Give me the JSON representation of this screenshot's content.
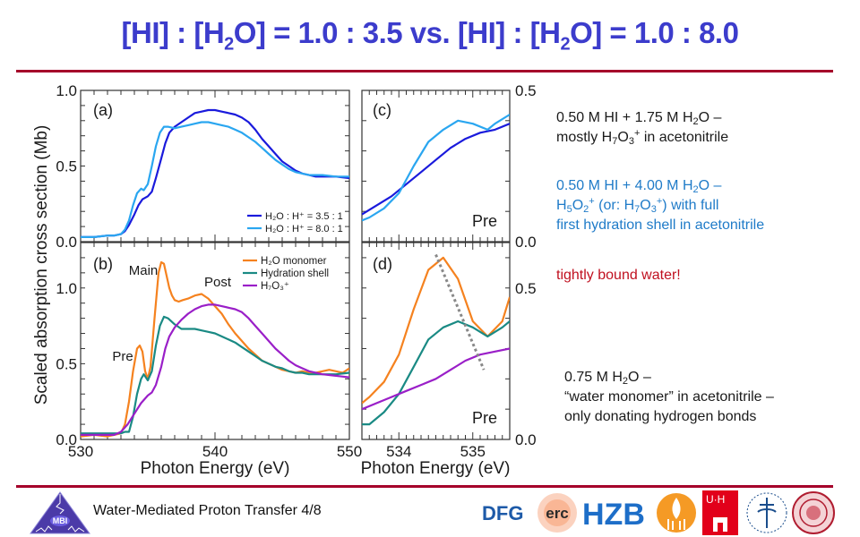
{
  "slide": {
    "title_parts": [
      "[HI] : [H",
      "2",
      "O] = 1.0 : 3.5  vs. [HI] : [H",
      "2",
      "O] = 1.0 : 8.0"
    ],
    "footer": "Water-Mediated  Proton Transfer  4/8",
    "logos": [
      "MBI",
      "DFG",
      "erc",
      "HZB",
      "Ben-Gurion",
      "UHH",
      "Stockholm University",
      "Uppsala University"
    ],
    "colors": {
      "title": "#3c3ccc",
      "rule": "#a5002a",
      "note_black": "#1a1a1a",
      "note_blue": "#1f7bc8",
      "note_red": "#c0101f"
    }
  },
  "notes": {
    "n1_line1": [
      "0.50 M HI + 1.75 M H",
      "2",
      "O –"
    ],
    "n1_line2": [
      "mostly H",
      "7",
      "O",
      "3",
      "+",
      " in acetonitrile"
    ],
    "n2_line1": [
      "0.50 M HI + 4.00 M H",
      "2",
      "O –"
    ],
    "n2_line2": [
      "H",
      "5",
      "O",
      "2",
      "+",
      " (or: H",
      "7",
      "O",
      "3",
      "+",
      ") with full"
    ],
    "n2_line3": "first hydration shell in acetonitrile",
    "n3": "tightly bound water!",
    "n4_line1": [
      "0.75 M H",
      "2",
      "O –"
    ],
    "n4_line2": "“water monomer”  in acetonitrile –",
    "n4_line3": "only donating hydrogen bonds"
  },
  "chart_data": [
    {
      "id": "a",
      "type": "line",
      "panel_label": "(a)",
      "xlim": [
        530,
        550
      ],
      "ylim": [
        0.0,
        1.0
      ],
      "yticks": [
        "0.0",
        "0.5",
        "1.0"
      ],
      "ylabel": "Scaled absorption cross section (Mb)",
      "legend": "bottom-right",
      "series": [
        {
          "name": "H₂O : H⁺ = 3.5 : 1",
          "color": "#1a1adc",
          "x": [
            530,
            531,
            532,
            532.5,
            533,
            533.3,
            533.6,
            534,
            534.3,
            534.6,
            535,
            535.3,
            535.6,
            536,
            536.3,
            536.6,
            537,
            537.5,
            538,
            538.5,
            539,
            539.5,
            540,
            540.5,
            541,
            541.5,
            542,
            542.5,
            543,
            543.5,
            544,
            544.5,
            545,
            545.5,
            546,
            546.5,
            547,
            547.5,
            548,
            549,
            550
          ],
          "y": [
            0.03,
            0.03,
            0.04,
            0.04,
            0.05,
            0.07,
            0.11,
            0.18,
            0.24,
            0.28,
            0.3,
            0.33,
            0.42,
            0.55,
            0.65,
            0.72,
            0.76,
            0.79,
            0.82,
            0.85,
            0.86,
            0.87,
            0.87,
            0.86,
            0.85,
            0.84,
            0.82,
            0.79,
            0.74,
            0.68,
            0.63,
            0.58,
            0.53,
            0.5,
            0.47,
            0.45,
            0.44,
            0.43,
            0.43,
            0.43,
            0.42
          ]
        },
        {
          "name": "H₂O : H⁺ = 8.0 : 1",
          "color": "#2aa6f0",
          "x": [
            530,
            531,
            532,
            532.5,
            533,
            533.3,
            533.6,
            533.9,
            534.2,
            534.5,
            534.7,
            535,
            535.3,
            535.6,
            535.9,
            536.2,
            536.5,
            537,
            537.5,
            538,
            538.5,
            539,
            539.5,
            540,
            540.5,
            541,
            541.5,
            542,
            542.5,
            543,
            543.5,
            544,
            544.5,
            545,
            545.5,
            546,
            546.5,
            547,
            548,
            549,
            550
          ],
          "y": [
            0.03,
            0.03,
            0.04,
            0.04,
            0.05,
            0.08,
            0.14,
            0.24,
            0.32,
            0.35,
            0.34,
            0.38,
            0.5,
            0.63,
            0.72,
            0.76,
            0.76,
            0.75,
            0.76,
            0.77,
            0.78,
            0.79,
            0.79,
            0.78,
            0.77,
            0.76,
            0.74,
            0.72,
            0.69,
            0.66,
            0.62,
            0.58,
            0.54,
            0.51,
            0.48,
            0.46,
            0.45,
            0.44,
            0.44,
            0.43,
            0.43
          ]
        }
      ]
    },
    {
      "id": "b",
      "type": "line",
      "panel_label": "(b)",
      "xlim": [
        530,
        550
      ],
      "ylim": [
        0.0,
        1.3
      ],
      "xticks": [
        "530",
        "540",
        "550"
      ],
      "yticks": [
        "0.0",
        "0.5",
        "1.0"
      ],
      "xlabel": "Photon Energy (eV)",
      "legend": "top-right",
      "annotations": [
        "Main",
        "Post",
        "Pre"
      ],
      "series": [
        {
          "name": "H₂O monomer",
          "color": "#f5821f",
          "x": [
            530,
            531,
            532,
            532.5,
            533,
            533.3,
            533.6,
            533.9,
            534.2,
            534.4,
            534.6,
            534.8,
            535,
            535.2,
            535.5,
            535.8,
            536,
            536.2,
            536.4,
            536.6,
            536.8,
            537,
            537.3,
            537.6,
            538,
            538.5,
            539,
            539.5,
            540,
            540.5,
            541,
            541.5,
            542,
            542.5,
            543,
            543.5,
            544,
            544.5,
            545,
            545.5,
            546,
            546.5,
            547,
            547.5,
            548,
            548.5,
            549,
            549.5,
            550
          ],
          "y": [
            0.02,
            0.03,
            0.02,
            0.03,
            0.04,
            0.1,
            0.25,
            0.45,
            0.6,
            0.62,
            0.58,
            0.45,
            0.4,
            0.48,
            0.8,
            1.1,
            1.17,
            1.16,
            1.08,
            1.0,
            0.95,
            0.92,
            0.91,
            0.92,
            0.93,
            0.95,
            0.96,
            0.93,
            0.88,
            0.83,
            0.76,
            0.7,
            0.65,
            0.6,
            0.56,
            0.52,
            0.5,
            0.48,
            0.46,
            0.45,
            0.44,
            0.45,
            0.44,
            0.44,
            0.45,
            0.46,
            0.45,
            0.44,
            0.47
          ]
        },
        {
          "name": "Hydration shell",
          "color": "#1a8a84",
          "x": [
            530,
            531,
            532,
            532.5,
            533,
            533.3,
            533.6,
            533.9,
            534.2,
            534.5,
            534.7,
            535,
            535.3,
            535.6,
            535.9,
            536.2,
            536.5,
            537,
            537.5,
            538,
            538.5,
            539,
            539.5,
            540,
            540.5,
            541,
            541.5,
            542,
            542.5,
            543,
            543.5,
            544,
            544.5,
            545,
            545.5,
            546,
            546.5,
            547,
            547.5,
            548,
            548.5,
            549,
            550
          ],
          "y": [
            0.04,
            0.04,
            0.04,
            0.04,
            0.04,
            0.05,
            0.05,
            0.15,
            0.3,
            0.4,
            0.43,
            0.39,
            0.45,
            0.62,
            0.75,
            0.81,
            0.8,
            0.76,
            0.73,
            0.73,
            0.73,
            0.72,
            0.71,
            0.7,
            0.68,
            0.66,
            0.64,
            0.61,
            0.58,
            0.55,
            0.52,
            0.5,
            0.48,
            0.47,
            0.45,
            0.44,
            0.44,
            0.43,
            0.43,
            0.43,
            0.43,
            0.43,
            0.44
          ]
        },
        {
          "name": "H₇O₃⁺",
          "color": "#9a1fc8",
          "x": [
            530,
            531,
            532,
            532.5,
            533,
            533.5,
            534,
            534.5,
            535,
            535.3,
            535.6,
            536,
            536.3,
            536.6,
            537,
            537.5,
            538,
            538.5,
            539,
            539.5,
            540,
            540.5,
            541,
            541.5,
            542,
            542.5,
            543,
            543.5,
            544,
            544.5,
            545,
            545.5,
            546,
            546.5,
            547,
            547.5,
            548,
            549,
            550
          ],
          "y": [
            0.03,
            0.03,
            0.03,
            0.03,
            0.05,
            0.1,
            0.17,
            0.24,
            0.29,
            0.31,
            0.36,
            0.48,
            0.6,
            0.68,
            0.74,
            0.79,
            0.83,
            0.86,
            0.88,
            0.89,
            0.89,
            0.88,
            0.87,
            0.86,
            0.84,
            0.8,
            0.75,
            0.7,
            0.65,
            0.6,
            0.56,
            0.52,
            0.49,
            0.47,
            0.45,
            0.44,
            0.43,
            0.42,
            0.41
          ]
        }
      ]
    },
    {
      "id": "c",
      "type": "line",
      "panel_label": "(c)",
      "panel_note": "Pre",
      "xlim": [
        533.5,
        535.5
      ],
      "ylim": [
        0.0,
        0.5
      ],
      "yticks": [
        "0.0",
        "0.5"
      ],
      "series": [
        {
          "name": "H₂O : H⁺ = 3.5 : 1",
          "color": "#1a1adc",
          "x": [
            533.5,
            533.7,
            533.9,
            534.1,
            534.3,
            534.5,
            534.7,
            534.9,
            535.1,
            535.3,
            535.5
          ],
          "y": [
            0.09,
            0.12,
            0.15,
            0.19,
            0.23,
            0.27,
            0.31,
            0.34,
            0.36,
            0.37,
            0.39
          ]
        },
        {
          "name": "H₂O : H⁺ = 8.0 : 1",
          "color": "#2aa6f0",
          "x": [
            533.5,
            533.6,
            533.8,
            534.0,
            534.2,
            534.4,
            534.6,
            534.8,
            535.0,
            535.2,
            535.3,
            535.5
          ],
          "y": [
            0.07,
            0.08,
            0.11,
            0.16,
            0.25,
            0.33,
            0.37,
            0.4,
            0.39,
            0.37,
            0.39,
            0.42
          ]
        }
      ]
    },
    {
      "id": "d",
      "type": "line",
      "panel_label": "(d)",
      "panel_note": "Pre",
      "xlim": [
        533.5,
        535.5
      ],
      "xticks": [
        "534",
        "535"
      ],
      "xlabel": "Photon Energy (eV)",
      "ylim": [
        0.0,
        0.65
      ],
      "yticks": [
        "0.0",
        "0.5"
      ],
      "series": [
        {
          "name": "H₂O monomer",
          "color": "#f5821f",
          "x": [
            533.5,
            533.6,
            533.8,
            534.0,
            534.2,
            534.4,
            534.6,
            534.8,
            535.0,
            535.2,
            535.4,
            535.5
          ],
          "y": [
            0.12,
            0.14,
            0.19,
            0.28,
            0.43,
            0.56,
            0.6,
            0.53,
            0.39,
            0.34,
            0.39,
            0.47
          ]
        },
        {
          "name": "Hydration shell",
          "color": "#1a8a84",
          "x": [
            533.5,
            533.6,
            533.8,
            534.0,
            534.2,
            534.4,
            534.6,
            534.8,
            535.0,
            535.2,
            535.4,
            535.5
          ],
          "y": [
            0.05,
            0.05,
            0.09,
            0.15,
            0.24,
            0.33,
            0.37,
            0.39,
            0.37,
            0.34,
            0.37,
            0.39
          ]
        },
        {
          "name": "H₇O₃⁺",
          "color": "#9a1fc8",
          "x": [
            533.5,
            533.7,
            533.9,
            534.1,
            534.3,
            534.5,
            534.7,
            534.9,
            535.1,
            535.3,
            535.5
          ],
          "y": [
            0.1,
            0.12,
            0.14,
            0.16,
            0.18,
            0.2,
            0.23,
            0.26,
            0.28,
            0.29,
            0.3
          ]
        },
        {
          "name": "peak-shift guide",
          "color": "#888888",
          "dashed": true,
          "x": [
            534.5,
            535.15
          ],
          "y": [
            0.61,
            0.23
          ]
        }
      ]
    }
  ]
}
